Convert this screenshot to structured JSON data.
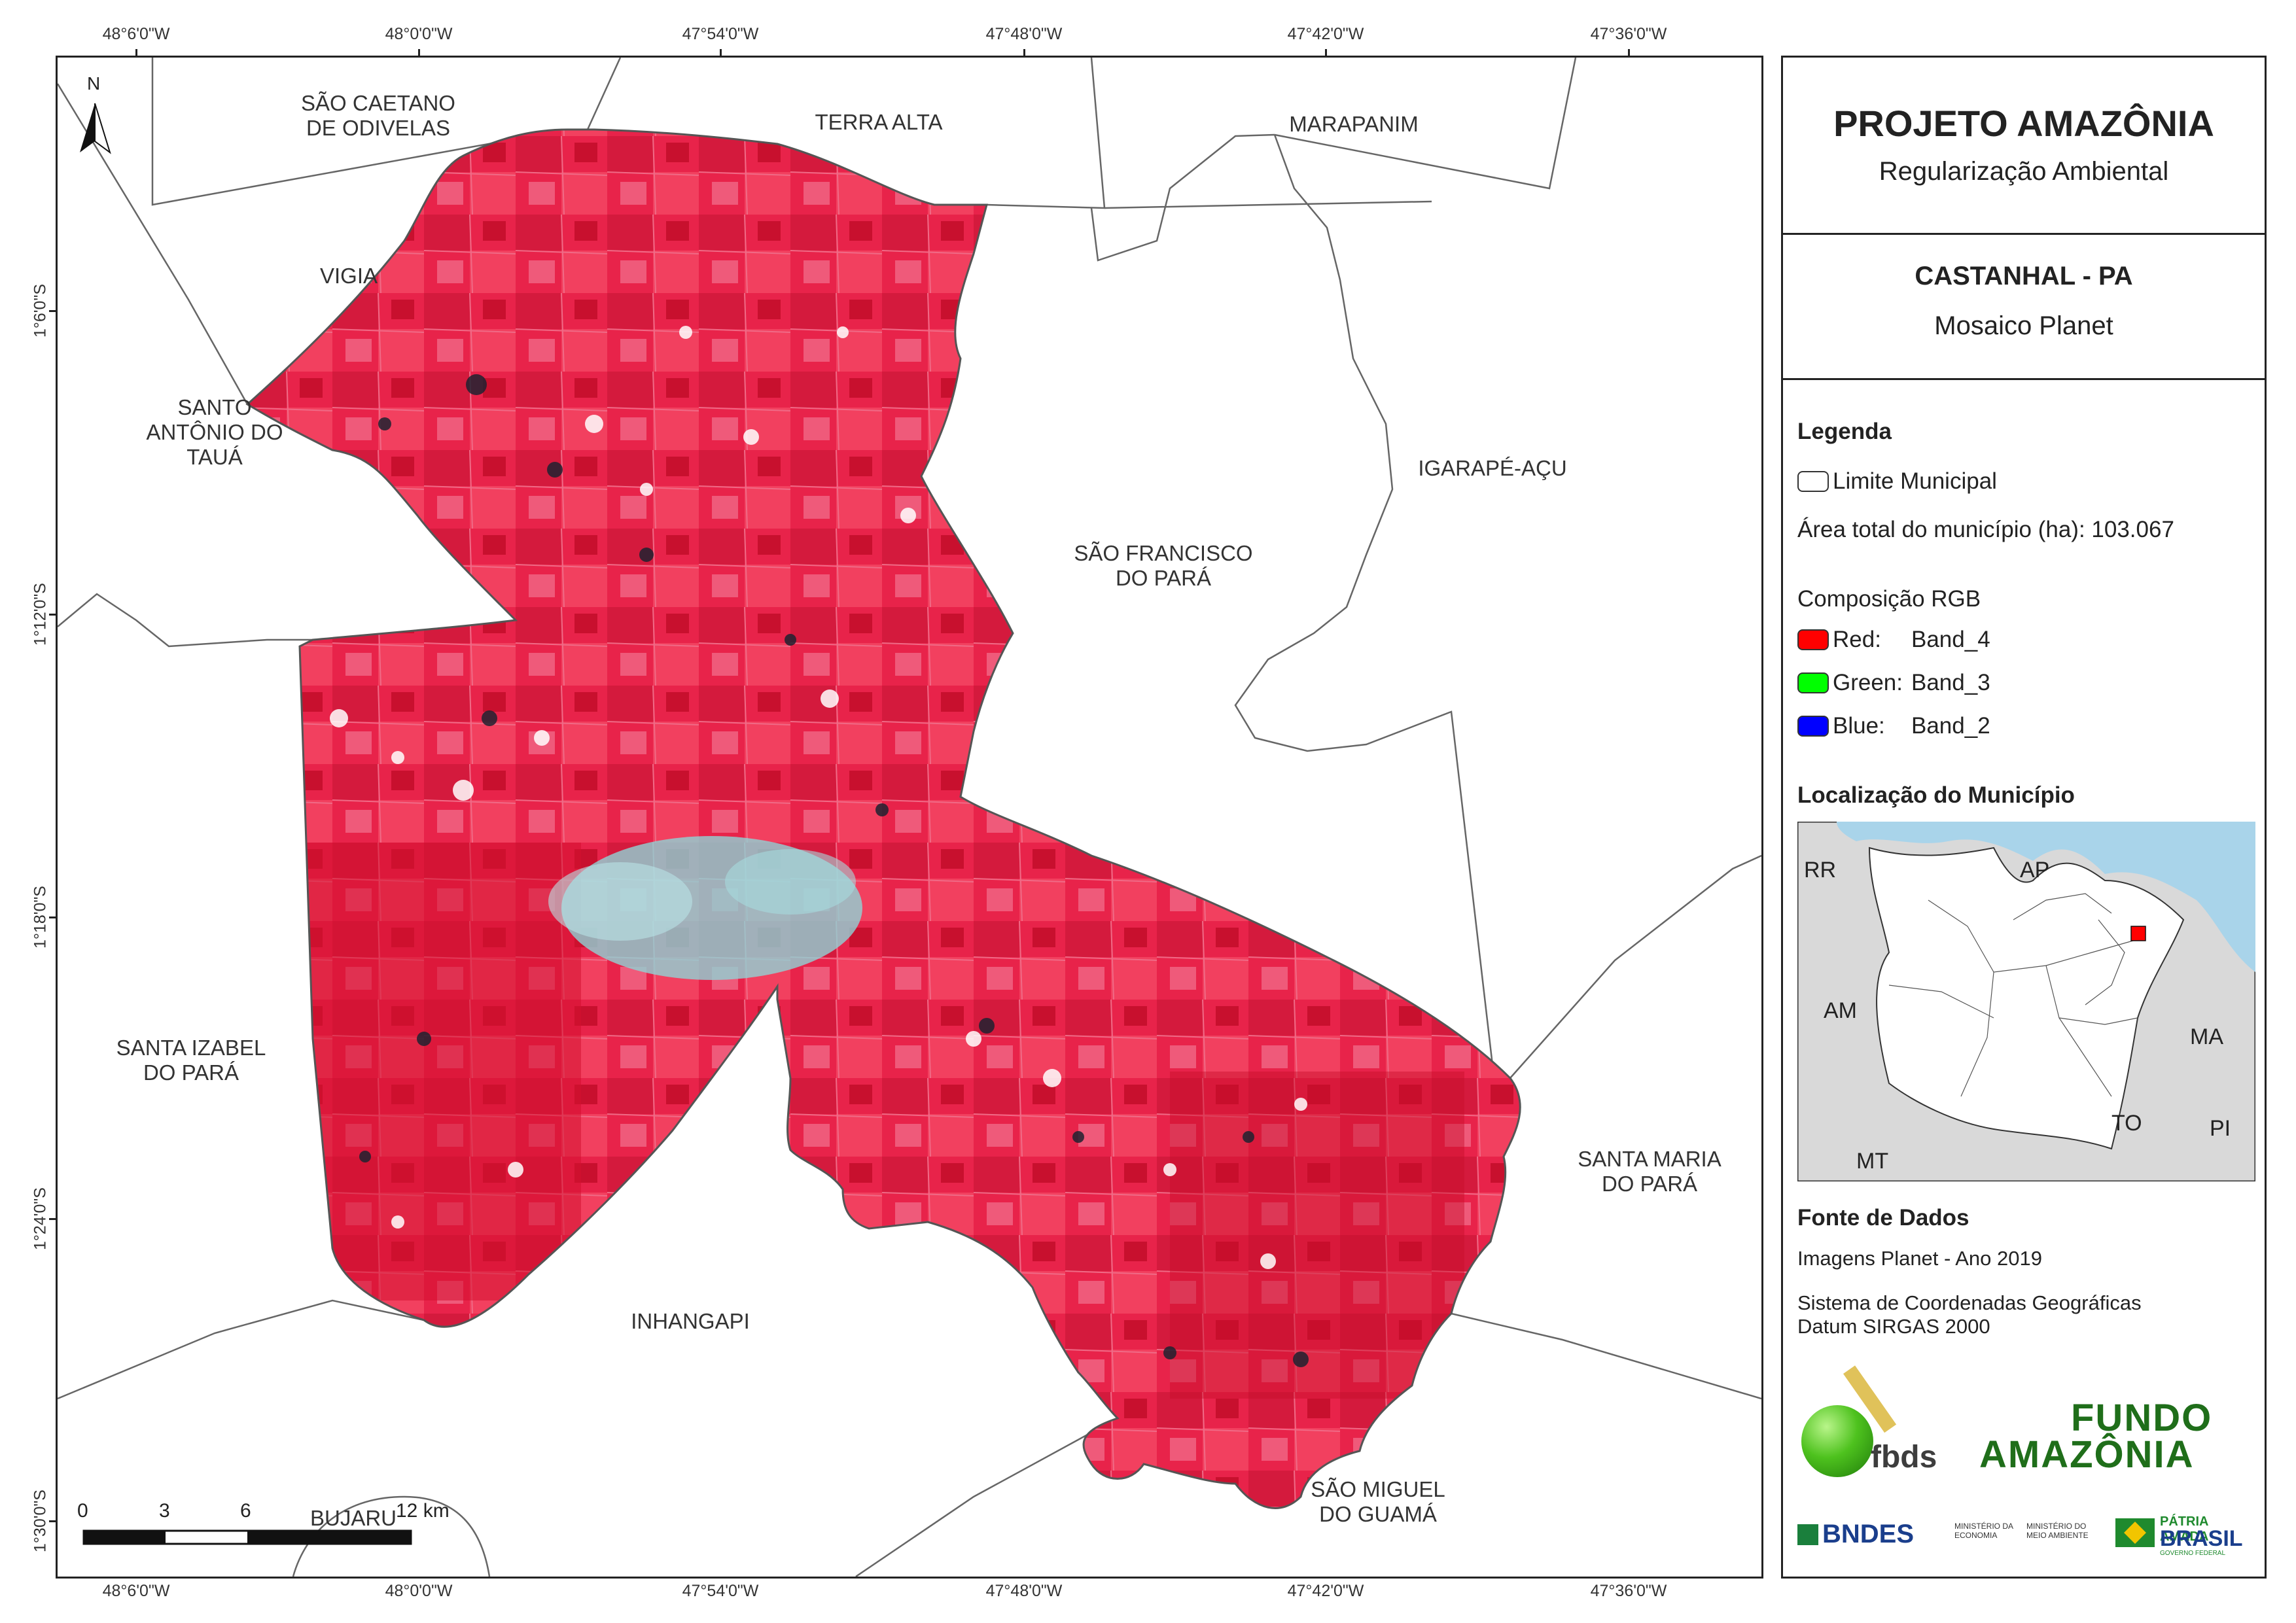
{
  "header": {
    "title": "PROJETO AMAZÔNIA",
    "subtitle": "Regularização Ambiental"
  },
  "map_info": {
    "municipality": "CASTANHAL - PA",
    "mosaic": "Mosaico Planet"
  },
  "legend": {
    "title": "Legenda",
    "boundary_label": "Limite Municipal",
    "area_label": "Área total do município (ha): 103.067",
    "rgb_title": "Composição RGB",
    "bands": [
      {
        "label": "Red:",
        "value": "Band_4",
        "color": "#ff0000"
      },
      {
        "label": "Green:",
        "value": "Band_3",
        "color": "#00ff00"
      },
      {
        "label": "Blue:",
        "value": "Band_2",
        "color": "#0000ff"
      }
    ]
  },
  "locator": {
    "title": "Localização do Município",
    "labels": [
      "RR",
      "AP",
      "AM",
      "MA",
      "TO",
      "PI",
      "MT"
    ]
  },
  "sources": {
    "title": "Fonte de Dados",
    "line1": "Imagens Planet - Ano 2019",
    "line2": "Sistema de Coordenadas Geográficas",
    "line3": "Datum SIRGAS 2000"
  },
  "logos": {
    "fbds": "fbds",
    "fundo_line1": "FUNDO",
    "fundo_line2": "AMAZÔNIA",
    "bndes": "BNDES",
    "min_economia": "MINISTÉRIO DA ECONOMIA",
    "min_meio": "MINISTÉRIO DO MEIO AMBIENTE",
    "patria_line1": "PÁTRIA AMADA",
    "patria_line2": "BRASIL",
    "patria_line3": "GOVERNO FEDERAL"
  },
  "map": {
    "north": "N",
    "lon_ticks": [
      "48°6'0\"W",
      "48°0'0\"W",
      "47°54'0\"W",
      "47°48'0\"W",
      "47°42'0\"W",
      "47°36'0\"W"
    ],
    "lat_ticks": [
      "1°6'0\"S",
      "1°12'0\"S",
      "1°18'0\"S",
      "1°24'0\"S",
      "1°30'0\"S"
    ],
    "neighbors": [
      "SÃO CAETANO\nDE ODIVELAS",
      "TERRA ALTA",
      "MARAPANIM",
      "VIGIA",
      "SANTO\nANTÔNIO DO\nTAUÁ",
      "IGARAPÉ-AÇU",
      "SÃO FRANCISCO\nDO PARÁ",
      "SANTA IZABEL\nDO PARÁ",
      "SANTA MARIA\nDO PARÁ",
      "INHANGAPI",
      "SÃO MIGUEL\nDO GUAMÁ",
      "BUJARU"
    ],
    "scale": {
      "ticks": [
        "0",
        "3",
        "6",
        "12 km"
      ]
    },
    "colors": {
      "imagery": "#e8234a",
      "imagery_dark": "#c8102e",
      "urban": "#8fd3d6"
    }
  }
}
